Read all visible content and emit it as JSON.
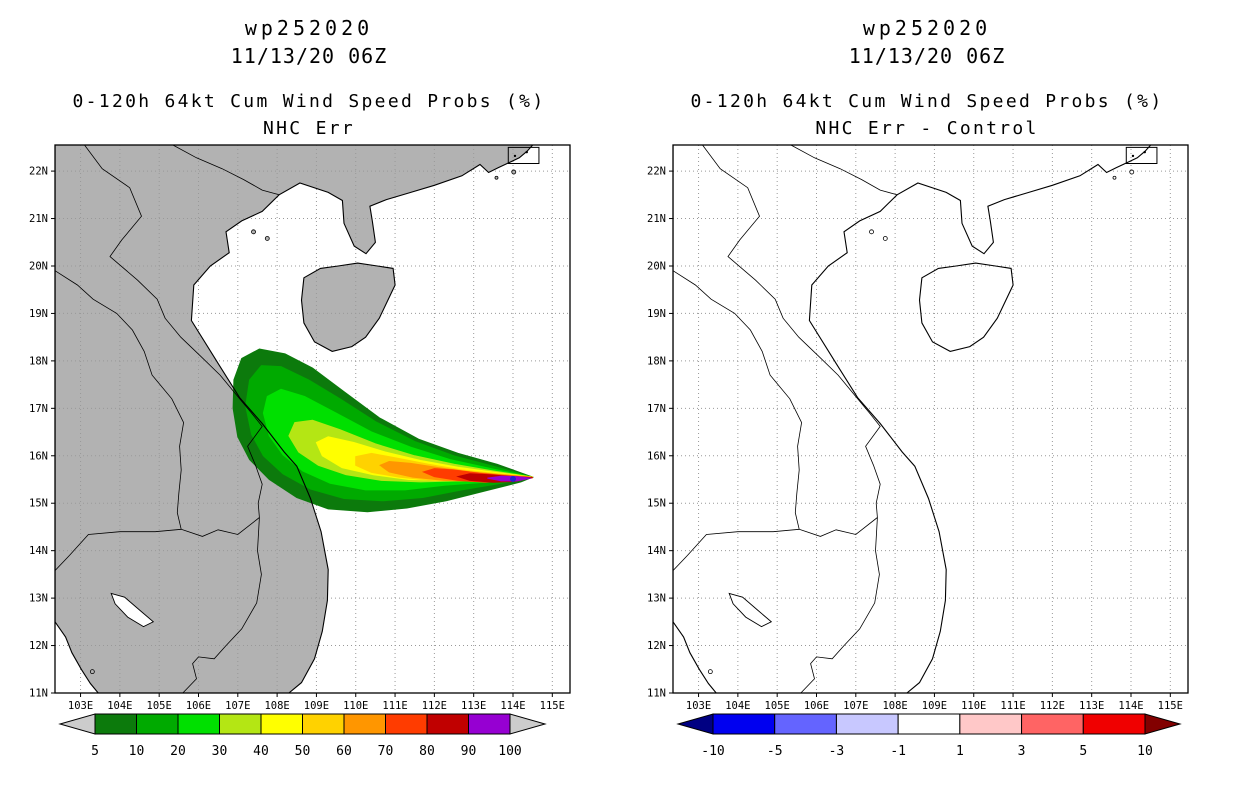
{
  "figure": {
    "background": "#ffffff"
  },
  "panels": [
    {
      "title_line1": "wp252020",
      "title_line2": "11/13/20 06Z",
      "subtitle_line1": "0-120h 64kt Cum Wind Speed Probs (%)",
      "subtitle_line2": "NHC Err",
      "land_fill": "#b2b2b2",
      "colorbar": {
        "labels": [
          "5",
          "10",
          "20",
          "30",
          "40",
          "50",
          "60",
          "70",
          "80",
          "90",
          "100"
        ],
        "colors": [
          "#0c7a0c",
          "#00aa00",
          "#00e000",
          "#b4e614",
          "#ffff00",
          "#ffd200",
          "#ff9600",
          "#ff3c00",
          "#c00000",
          "#9600d2"
        ],
        "arrow_left": "#cccccc",
        "arrow_right": "#cccccc"
      }
    },
    {
      "title_line1": "wp252020",
      "title_line2": "11/13/20 06Z",
      "subtitle_line1": "0-120h 64kt Cum Wind Speed Probs (%)",
      "subtitle_line2": "NHC Err - Control",
      "land_fill": "none",
      "colorbar": {
        "labels": [
          "-10",
          "-5",
          "-3",
          "-1",
          "1",
          "3",
          "5",
          "10"
        ],
        "colors": [
          "#0000f0",
          "#6464ff",
          "#c8c8ff",
          "#ffffff",
          "#ffc8c8",
          "#ff6464",
          "#f00000"
        ],
        "arrow_left": "#000082",
        "arrow_right": "#820000"
      }
    }
  ],
  "axes": {
    "lon_labels": [
      "103E",
      "104E",
      "105E",
      "106E",
      "107E",
      "108E",
      "109E",
      "110E",
      "111E",
      "112E",
      "113E",
      "114E",
      "115E"
    ],
    "lat_labels": [
      "11N",
      "12N",
      "13N",
      "14N",
      "15N",
      "16N",
      "17N",
      "18N",
      "19N",
      "20N",
      "21N",
      "22N"
    ]
  },
  "chart_data": {
    "type": "filled_contour_map",
    "storm_id": "wp252020",
    "init_time": "11/13/20 06Z",
    "variable": "0-120h 64kt Cum Wind Speed Probs (%)",
    "map_extent": {
      "lon": [
        102.35,
        115.45
      ],
      "lat": [
        11.0,
        22.55
      ]
    },
    "grid_interval_deg": 1,
    "panels": [
      {
        "name": "NHC Err",
        "levels_percent": [
          5,
          10,
          20,
          30,
          40,
          50,
          60,
          70,
          80,
          90,
          100
        ],
        "max_probability_location": [
          114.0,
          15.51
        ],
        "contours": [
          {
            "level": 5,
            "color": "#0c7a0c",
            "polygon": [
              [
                114.5,
                15.55
              ],
              [
                113.6,
                15.82
              ],
              [
                112.6,
                16.05
              ],
              [
                111.6,
                16.35
              ],
              [
                110.6,
                16.8
              ],
              [
                109.7,
                17.35
              ],
              [
                108.9,
                17.85
              ],
              [
                108.2,
                18.15
              ],
              [
                107.55,
                18.25
              ],
              [
                107.1,
                18.05
              ],
              [
                106.9,
                17.6
              ],
              [
                106.88,
                17.0
              ],
              [
                107.0,
                16.4
              ],
              [
                107.3,
                15.92
              ],
              [
                107.8,
                15.5
              ],
              [
                108.5,
                15.12
              ],
              [
                109.3,
                14.88
              ],
              [
                110.3,
                14.82
              ],
              [
                111.3,
                14.9
              ],
              [
                112.3,
                15.05
              ],
              [
                113.4,
                15.28
              ],
              [
                114.2,
                15.45
              ]
            ]
          },
          {
            "level": 10,
            "color": "#00aa00",
            "polygon": [
              [
                114.5,
                15.55
              ],
              [
                113.5,
                15.78
              ],
              [
                112.5,
                16.0
              ],
              [
                111.5,
                16.3
              ],
              [
                110.5,
                16.72
              ],
              [
                109.6,
                17.2
              ],
              [
                108.8,
                17.6
              ],
              [
                108.1,
                17.88
              ],
              [
                107.6,
                17.9
              ],
              [
                107.3,
                17.6
              ],
              [
                107.2,
                17.05
              ],
              [
                107.35,
                16.45
              ],
              [
                107.65,
                16.0
              ],
              [
                108.15,
                15.62
              ],
              [
                108.85,
                15.3
              ],
              [
                109.7,
                15.1
              ],
              [
                110.7,
                15.05
              ],
              [
                111.7,
                15.12
              ],
              [
                112.7,
                15.28
              ],
              [
                113.7,
                15.42
              ]
            ]
          },
          {
            "level": 20,
            "color": "#00e000",
            "polygon": [
              [
                114.5,
                15.55
              ],
              [
                113.5,
                15.72
              ],
              [
                112.4,
                15.92
              ],
              [
                111.4,
                16.18
              ],
              [
                110.4,
                16.5
              ],
              [
                109.5,
                16.9
              ],
              [
                108.7,
                17.25
              ],
              [
                108.1,
                17.4
              ],
              [
                107.75,
                17.25
              ],
              [
                107.65,
                16.9
              ],
              [
                107.8,
                16.42
              ],
              [
                108.15,
                16.02
              ],
              [
                108.65,
                15.68
              ],
              [
                109.35,
                15.42
              ],
              [
                110.25,
                15.28
              ],
              [
                111.25,
                15.28
              ],
              [
                112.25,
                15.38
              ],
              [
                113.4,
                15.45
              ]
            ]
          },
          {
            "level": 30,
            "color": "#b4e614",
            "polygon": [
              [
                114.5,
                15.55
              ],
              [
                113.5,
                15.68
              ],
              [
                112.5,
                15.82
              ],
              [
                111.5,
                16.0
              ],
              [
                110.5,
                16.25
              ],
              [
                109.6,
                16.55
              ],
              [
                108.9,
                16.75
              ],
              [
                108.45,
                16.7
              ],
              [
                108.3,
                16.42
              ],
              [
                108.55,
                16.08
              ],
              [
                109.05,
                15.8
              ],
              [
                109.75,
                15.6
              ],
              [
                110.65,
                15.48
              ],
              [
                111.65,
                15.45
              ],
              [
                112.65,
                15.47
              ],
              [
                113.55,
                15.5
              ]
            ]
          },
          {
            "level": 40,
            "color": "#ffff00",
            "polygon": [
              [
                114.5,
                15.55
              ],
              [
                113.55,
                15.65
              ],
              [
                112.6,
                15.76
              ],
              [
                111.65,
                15.9
              ],
              [
                110.75,
                16.08
              ],
              [
                109.95,
                16.28
              ],
              [
                109.3,
                16.4
              ],
              [
                109.0,
                16.28
              ],
              [
                109.15,
                16.0
              ],
              [
                109.65,
                15.75
              ],
              [
                110.45,
                15.6
              ],
              [
                111.35,
                15.5
              ],
              [
                112.35,
                15.48
              ],
              [
                113.45,
                15.5
              ]
            ]
          },
          {
            "level": 50,
            "color": "#ffd200",
            "polygon": [
              [
                114.5,
                15.55
              ],
              [
                113.6,
                15.62
              ],
              [
                112.7,
                15.7
              ],
              [
                111.85,
                15.82
              ],
              [
                111.05,
                15.95
              ],
              [
                110.4,
                16.05
              ],
              [
                110.0,
                15.98
              ],
              [
                110.0,
                15.8
              ],
              [
                110.4,
                15.65
              ],
              [
                111.1,
                15.55
              ],
              [
                111.95,
                15.48
              ],
              [
                112.85,
                15.47
              ],
              [
                113.7,
                15.5
              ]
            ]
          },
          {
            "level": 60,
            "color": "#ff9600",
            "polygon": [
              [
                114.5,
                15.55
              ],
              [
                113.7,
                15.6
              ],
              [
                112.9,
                15.66
              ],
              [
                112.1,
                15.75
              ],
              [
                111.4,
                15.84
              ],
              [
                110.85,
                15.88
              ],
              [
                110.62,
                15.8
              ],
              [
                110.85,
                15.66
              ],
              [
                111.45,
                15.55
              ],
              [
                112.25,
                15.48
              ],
              [
                113.1,
                15.46
              ],
              [
                113.9,
                15.5
              ]
            ]
          },
          {
            "level": 70,
            "color": "#ff3c00",
            "polygon": [
              [
                114.5,
                15.54
              ],
              [
                113.85,
                15.58
              ],
              [
                113.15,
                15.63
              ],
              [
                112.5,
                15.7
              ],
              [
                112.0,
                15.73
              ],
              [
                111.72,
                15.66
              ],
              [
                112.0,
                15.56
              ],
              [
                112.6,
                15.48
              ],
              [
                113.3,
                15.44
              ],
              [
                113.95,
                15.47
              ]
            ]
          },
          {
            "level": 80,
            "color": "#c00000",
            "polygon": [
              [
                114.5,
                15.54
              ],
              [
                113.95,
                15.56
              ],
              [
                113.4,
                15.6
              ],
              [
                112.9,
                15.62
              ],
              [
                112.6,
                15.56
              ],
              [
                112.9,
                15.48
              ],
              [
                113.5,
                15.44
              ],
              [
                114.05,
                15.46
              ]
            ]
          },
          {
            "level": 90,
            "color": "#9600d2",
            "polygon": [
              [
                114.45,
                15.53
              ],
              [
                114.1,
                15.56
              ],
              [
                113.7,
                15.57
              ],
              [
                113.35,
                15.53
              ],
              [
                113.7,
                15.47
              ],
              [
                114.1,
                15.47
              ]
            ]
          }
        ]
      },
      {
        "name": "NHC Err - Control",
        "difference_levels_percent": [
          -10,
          -5,
          -3,
          -1,
          1,
          3,
          5,
          10
        ],
        "contours": [],
        "note": "no shaded differences; field blank (values between -1 and 1)"
      }
    ]
  }
}
